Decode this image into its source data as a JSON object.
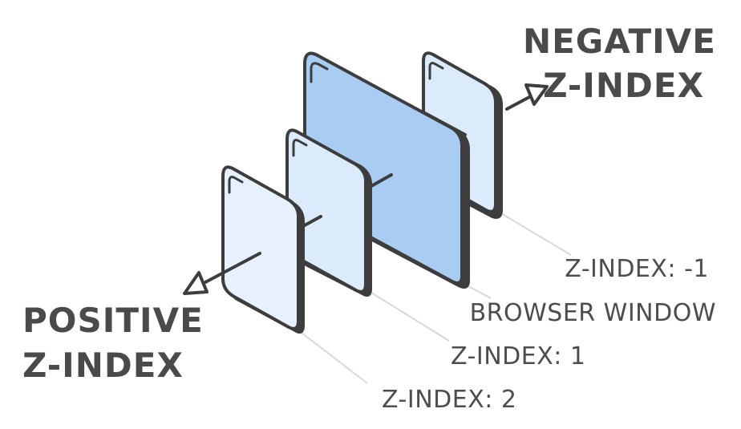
{
  "headings": {
    "negative_line1": "NEGATIVE",
    "negative_line2": "Z-INDEX",
    "positive_line1": "POSITIVE",
    "positive_line2": "Z-INDEX"
  },
  "labels": {
    "z_minus_1": "Z-INDEX: -1",
    "browser_window": "BROWSER WINDOW",
    "z_1": "Z-INDEX: 1",
    "z_2": "Z-INDEX: 2"
  },
  "colors": {
    "outline": "#3d3d3d",
    "browser_window_fill": "#a9ccf2",
    "layer_fill": "#dcebfc",
    "front_layer_fill": "#e7f1fd",
    "leader_line": "#d8d8d8"
  }
}
